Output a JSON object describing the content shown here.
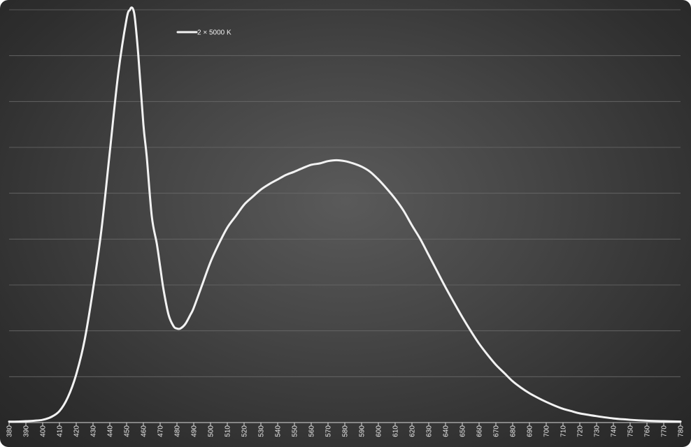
{
  "chart_data": {
    "type": "line",
    "title": "",
    "xlabel": "",
    "ylabel": "",
    "grid": true,
    "legend_placement": "top-left",
    "x_ticks": [
      380,
      390,
      400,
      410,
      420,
      430,
      440,
      450,
      460,
      470,
      480,
      490,
      500,
      510,
      520,
      530,
      540,
      550,
      560,
      570,
      580,
      590,
      600,
      610,
      620,
      630,
      640,
      650,
      660,
      670,
      680,
      690,
      700,
      710,
      720,
      730,
      740,
      750,
      760,
      770,
      780
    ],
    "xlim": [
      380,
      780
    ],
    "ylim": [
      0,
      9
    ],
    "y_gridlines": 9,
    "series": [
      {
        "name": "2 × 5000 K",
        "color": "#f2f2f2",
        "x": [
          380,
          385,
          390,
          395,
          400,
          405,
          410,
          415,
          420,
          425,
          430,
          435,
          440,
          445,
          450,
          452,
          453,
          454,
          455,
          457,
          460,
          462,
          465,
          468,
          470,
          472,
          475,
          478,
          480,
          482,
          485,
          488,
          490,
          495,
          500,
          505,
          510,
          515,
          520,
          525,
          530,
          535,
          540,
          545,
          550,
          555,
          560,
          565,
          570,
          575,
          580,
          585,
          590,
          595,
          600,
          605,
          610,
          615,
          620,
          625,
          630,
          635,
          640,
          645,
          650,
          655,
          660,
          665,
          670,
          675,
          680,
          685,
          690,
          695,
          700,
          705,
          710,
          715,
          720,
          730,
          740,
          750,
          760,
          770,
          780
        ],
        "y": [
          0.02,
          0.02,
          0.03,
          0.04,
          0.06,
          0.12,
          0.25,
          0.55,
          1.05,
          1.8,
          2.9,
          4.2,
          5.9,
          7.6,
          8.8,
          9.0,
          9.05,
          9.0,
          8.8,
          8.0,
          6.5,
          5.8,
          4.5,
          3.9,
          3.4,
          2.9,
          2.35,
          2.1,
          2.05,
          2.05,
          2.15,
          2.35,
          2.5,
          3.0,
          3.5,
          3.9,
          4.25,
          4.5,
          4.75,
          4.92,
          5.08,
          5.2,
          5.3,
          5.4,
          5.47,
          5.55,
          5.62,
          5.65,
          5.7,
          5.72,
          5.7,
          5.65,
          5.58,
          5.47,
          5.3,
          5.1,
          4.88,
          4.62,
          4.3,
          4.0,
          3.65,
          3.3,
          2.95,
          2.62,
          2.3,
          2.0,
          1.72,
          1.48,
          1.26,
          1.08,
          0.9,
          0.76,
          0.64,
          0.54,
          0.45,
          0.37,
          0.3,
          0.25,
          0.2,
          0.14,
          0.09,
          0.06,
          0.04,
          0.03,
          0.02
        ]
      }
    ]
  }
}
